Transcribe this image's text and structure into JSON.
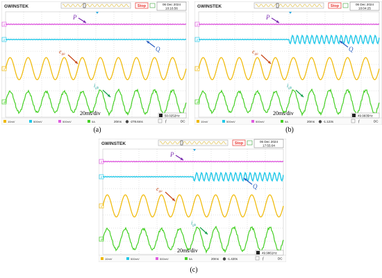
{
  "brand": "GWINSTEK",
  "colors": {
    "p": "#e05ce0",
    "q": "#22c8e8",
    "e": "#f0b800",
    "i": "#44d024",
    "stop": "#e8302a",
    "arrow_red": "#c84a1c",
    "arrow_blue": "#2a5fc0",
    "arrow_green": "#18a050",
    "grid": "#b8b8b8"
  },
  "labels": {
    "P": "P",
    "Q": "Q",
    "e": "e",
    "e_sub": "ga",
    "i": "i",
    "i_sub": "gb",
    "timebase": "20ms/div"
  },
  "status": {
    "stop": "Stop"
  },
  "channel_markers": [
    "3",
    "2",
    "1",
    "4"
  ],
  "bottom_bar": {
    "ch1": "10mV",
    "ch2": "500mV",
    "ch3": "500mV",
    "ch4": "5A",
    "time": "20ms"
  },
  "panels": [
    {
      "caption": "(a)",
      "date": "06 Dec 2024",
      "time": "10:16:56",
      "offset": "-278.6ms",
      "freq": "50.0252Hz",
      "q_step": 0,
      "i_step": 0.5
    },
    {
      "caption": "(b)",
      "date": "06 Dec 2024",
      "time": "10:04:25",
      "offset": "-1.123s",
      "freq": "49.9935Hz",
      "q_step": 0.5,
      "i_step": 0.5
    },
    {
      "caption": "(c)",
      "date": "06 Dec 2024",
      "time": "17:55:04",
      "offset": "-1.420s",
      "freq": "49.9861Hz",
      "q_step": 0.5,
      "i_step": 0.5
    }
  ]
}
